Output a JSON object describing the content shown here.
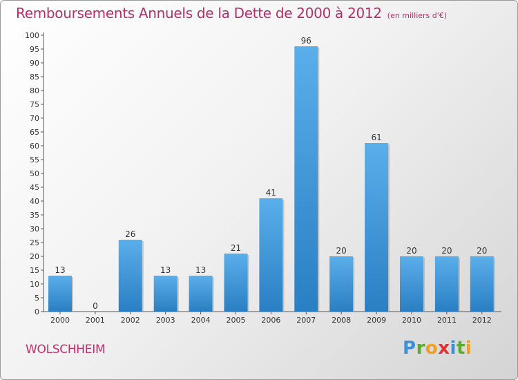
{
  "header": {
    "title": "Remboursements Annuels de la Dette de 2000 à 2012",
    "unit": "(en milliers d'€)"
  },
  "footer": {
    "commune": "WOLSCHHEIM",
    "logo_text": "Proxiti"
  },
  "colors": {
    "bar_top": "#5aaeea",
    "bar_bottom": "#2a7fc4",
    "title": "#b0306a"
  },
  "chart_data": {
    "type": "bar",
    "title": "Remboursements Annuels de la Dette de 2000 à 2012",
    "categories": [
      "2000",
      "2001",
      "2002",
      "2003",
      "2004",
      "2005",
      "2006",
      "2007",
      "2008",
      "2009",
      "2010",
      "2011",
      "2012"
    ],
    "values": [
      13,
      0,
      26,
      13,
      13,
      21,
      41,
      96,
      20,
      61,
      20,
      20,
      20
    ],
    "ylim": [
      0,
      100
    ],
    "yticks": [
      0,
      5,
      10,
      15,
      20,
      25,
      30,
      35,
      40,
      45,
      50,
      55,
      60,
      65,
      70,
      75,
      80,
      85,
      90,
      95,
      100
    ],
    "grid": false,
    "legend": "none"
  }
}
